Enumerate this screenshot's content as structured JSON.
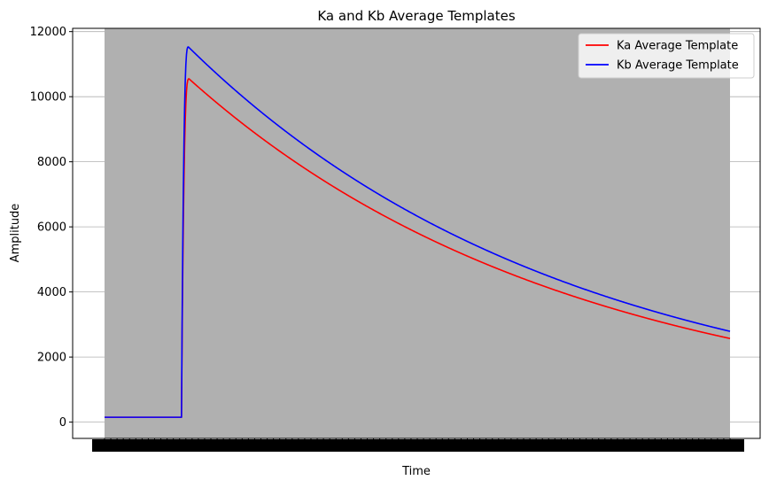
{
  "chart_data": {
    "type": "line",
    "title": "Ka and Kb Average Templates",
    "xlabel": "Time",
    "ylabel": "Amplitude",
    "ylim": [
      -500,
      12100
    ],
    "yticks": [
      0,
      2000,
      4000,
      6000,
      8000,
      10000,
      12000
    ],
    "ytick_labels": [
      "0",
      "2000",
      "4000",
      "6000",
      "8000",
      "10000",
      "12000"
    ],
    "xlim": [
      0,
      1000
    ],
    "grid": true,
    "grid_axis": "y",
    "plot_background": "#b0b0b0",
    "legend": "top-right",
    "series": [
      {
        "name": "Ka Average Template",
        "color": "#ff0000",
        "baseline": 150,
        "onset_x": 123,
        "peak_x": 135,
        "peak_y": 10550,
        "end_x": 1000,
        "end_y": 2570
      },
      {
        "name": "Kb Average Template",
        "color": "#0000ff",
        "baseline": 150,
        "onset_x": 123,
        "peak_x": 134,
        "peak_y": 11530,
        "end_x": 1000,
        "end_y": 2790
      }
    ]
  }
}
